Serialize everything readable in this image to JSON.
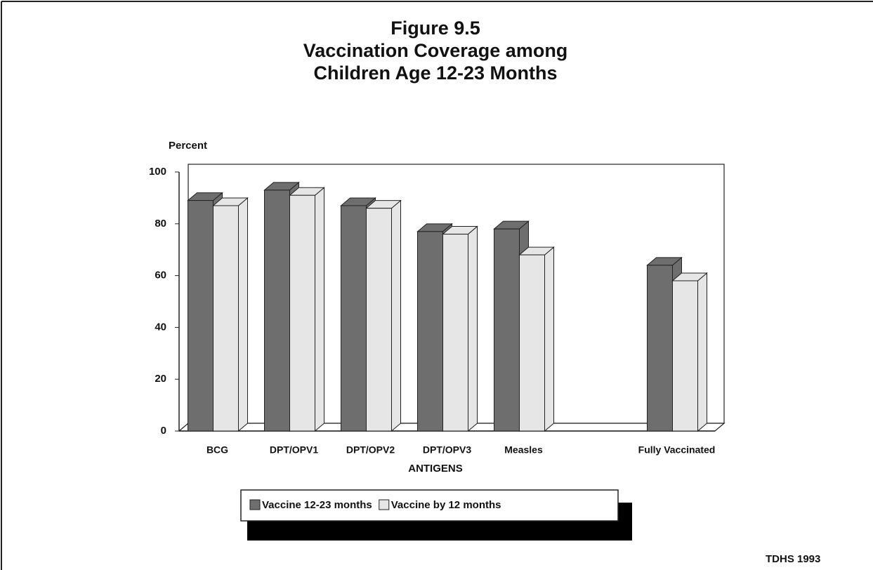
{
  "chart_data": {
    "type": "bar",
    "title_lines": [
      "Figure 9.5",
      "Vaccination Coverage among",
      "Children Age 12-23 Months"
    ],
    "y_axis_label": "Percent",
    "x_axis_label": "ANTIGENS",
    "source": "TDHS 1993",
    "categories": [
      "BCG",
      "DPT/OPV1",
      "DPT/OPV2",
      "DPT/OPV3",
      "Measles",
      null,
      "Fully Vaccinated"
    ],
    "series": [
      {
        "name": "Vaccine 12-23 months",
        "color": "#6e6e6e",
        "values": [
          89,
          93,
          87,
          77,
          78,
          null,
          64
        ]
      },
      {
        "name": "Vaccine by 12 months",
        "color": "#e6e6e6",
        "values": [
          87,
          91,
          86,
          76,
          68,
          null,
          58
        ]
      }
    ],
    "ylim": [
      0,
      100
    ],
    "yticks": [
      0,
      20,
      40,
      60,
      80,
      100
    ]
  }
}
